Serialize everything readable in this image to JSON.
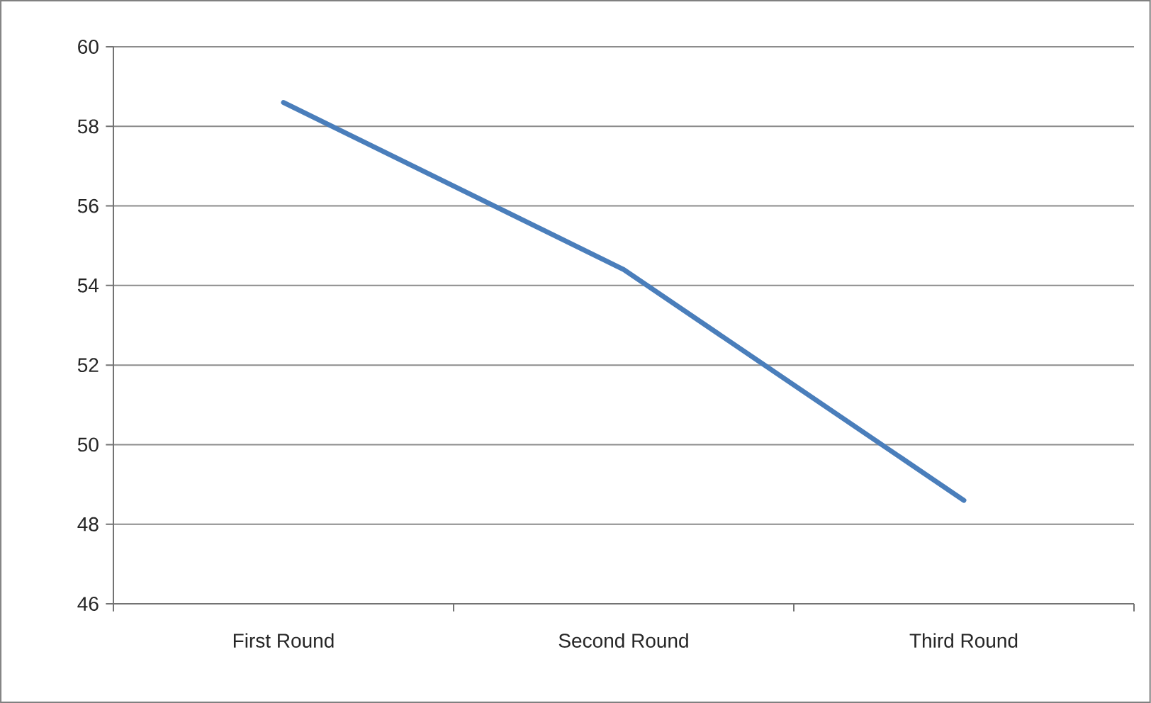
{
  "chart_data": {
    "type": "line",
    "categories": [
      "First Round",
      "Second Round",
      "Third Round"
    ],
    "series": [
      {
        "color": "#4a7ebb",
        "values": [
          58.6,
          54.4,
          48.6
        ]
      }
    ],
    "ylim": [
      46,
      60
    ],
    "yticks": [
      46,
      48,
      50,
      52,
      54,
      56,
      58,
      60
    ],
    "grid": "y",
    "marker": "none",
    "line_style": "solid"
  }
}
